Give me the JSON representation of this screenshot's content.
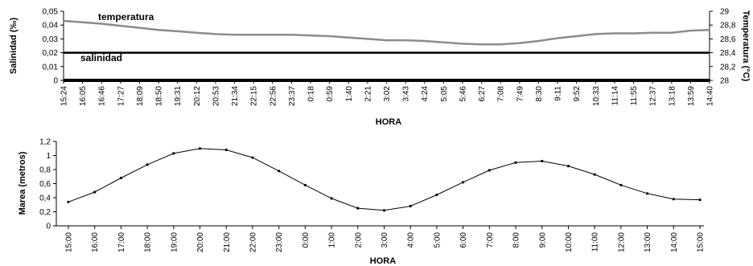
{
  "chart_data": [
    {
      "type": "line",
      "xlabel": "HORA",
      "ylabel": "Salinidad (‰)",
      "y2label": "Temperatura (°C)",
      "ylim": [
        0,
        0.05
      ],
      "y2lim": [
        28,
        29
      ],
      "yticks": [
        "0",
        "0,01",
        "0,02",
        "0,03",
        "0,04",
        "0,05"
      ],
      "y2ticks": [
        "28",
        "28,2",
        "28,4",
        "28,6",
        "28,8",
        "29"
      ],
      "x": [
        "15:24",
        "16:05",
        "16:46",
        "17:27",
        "18:09",
        "18:50",
        "19:31",
        "20:12",
        "20:53",
        "21:34",
        "22:15",
        "22:56",
        "23:37",
        "0:18",
        "0:59",
        "1:40",
        "2:21",
        "3:02",
        "3:43",
        "4:24",
        "5:05",
        "5:46",
        "6:27",
        "7:08",
        "7:49",
        "8:30",
        "9:11",
        "9:52",
        "10:33",
        "11:14",
        "11:55",
        "12:37",
        "13:18",
        "13:59",
        "14:40"
      ],
      "series": [
        {
          "name": "temperatura",
          "axis": "right",
          "color": "#8c8c8c",
          "values": [
            28.86,
            28.84,
            28.82,
            28.79,
            28.76,
            28.73,
            28.71,
            28.69,
            28.67,
            28.66,
            28.66,
            28.66,
            28.66,
            28.65,
            28.64,
            28.62,
            28.6,
            28.58,
            28.58,
            28.57,
            28.55,
            28.53,
            28.52,
            28.52,
            28.54,
            28.57,
            28.61,
            28.64,
            28.67,
            28.68,
            28.68,
            28.69,
            28.69,
            28.72,
            28.73
          ]
        },
        {
          "name": "salinidad",
          "axis": "left",
          "color": "#000000",
          "values": [
            0.02,
            0.02,
            0.02,
            0.02,
            0.02,
            0.02,
            0.02,
            0.02,
            0.02,
            0.02,
            0.02,
            0.02,
            0.02,
            0.02,
            0.02,
            0.02,
            0.02,
            0.02,
            0.02,
            0.02,
            0.02,
            0.02,
            0.02,
            0.02,
            0.02,
            0.02,
            0.02,
            0.02,
            0.02,
            0.02,
            0.02,
            0.02,
            0.02,
            0.02,
            0.02
          ]
        }
      ]
    },
    {
      "type": "line",
      "xlabel": "HORA",
      "ylabel": "Marea (metros)",
      "ylim": [
        0,
        1.2
      ],
      "yticks": [
        "0",
        "0,2",
        "0,4",
        "0,6",
        "0,8",
        "1",
        "1,2"
      ],
      "x": [
        "15:00",
        "16:00",
        "17:00",
        "18:00",
        "19:00",
        "20:00",
        "21:00",
        "22:00",
        "23:00",
        "0:00",
        "1:00",
        "2:00",
        "3:00",
        "4:00",
        "5:00",
        "6:00",
        "7:00",
        "8:00",
        "9:00",
        "10:00",
        "11:00",
        "12:00",
        "13:00",
        "14:00",
        "15:00"
      ],
      "series": [
        {
          "color": "#000000",
          "values": [
            0.34,
            0.48,
            0.68,
            0.87,
            1.03,
            1.1,
            1.08,
            0.97,
            0.78,
            0.58,
            0.39,
            0.25,
            0.22,
            0.28,
            0.44,
            0.62,
            0.79,
            0.9,
            0.92,
            0.85,
            0.73,
            0.58,
            0.46,
            0.38,
            0.37
          ]
        }
      ]
    }
  ]
}
